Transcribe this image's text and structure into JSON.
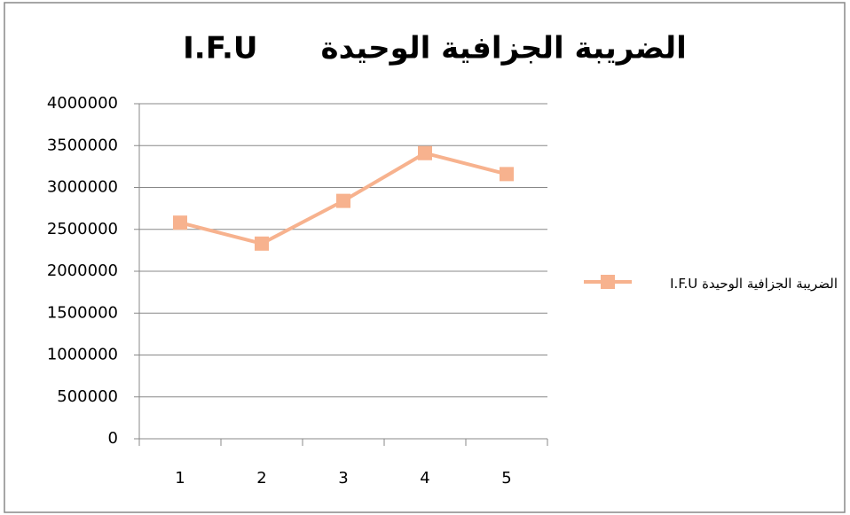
{
  "chart_data": {
    "type": "line",
    "title": "الضريبة الجزافية الوحيدة      I.F.U",
    "categories": [
      "1",
      "2",
      "3",
      "4",
      "5"
    ],
    "series": [
      {
        "name": "الضريبة الجزافية الوحيدة I.F.U",
        "color": "#f7b28e",
        "values": [
          2580000,
          2330000,
          2840000,
          3410000,
          3160000
        ]
      }
    ],
    "ylim": [
      0,
      4000000
    ],
    "yticks": [
      0,
      500000,
      1000000,
      1500000,
      2000000,
      2500000,
      3000000,
      3500000,
      4000000
    ],
    "grid": true,
    "legend": "right"
  }
}
